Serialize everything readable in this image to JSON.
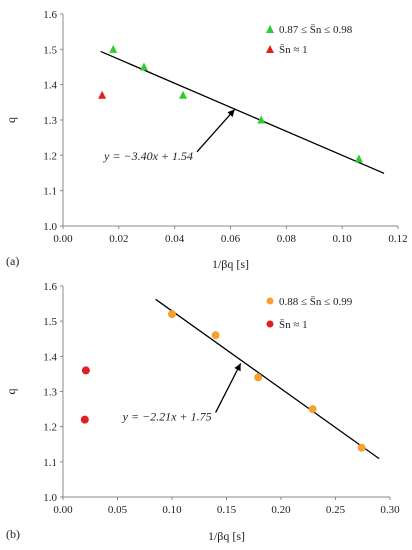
{
  "chart_data": [
    {
      "type": "scatter",
      "panel_label": "(a)",
      "xlabel": "1/βq [s]",
      "ylabel": "q",
      "xlim": [
        0,
        0.12
      ],
      "ylim": [
        1.0,
        1.6
      ],
      "xticks": [
        "0.00",
        "0.02",
        "0.04",
        "0.06",
        "0.08",
        "0.10",
        "0.12"
      ],
      "yticks": [
        "1.0",
        "1.1",
        "1.2",
        "1.3",
        "1.4",
        "1.5",
        "1.6"
      ],
      "marker": "triangle",
      "series": [
        {
          "name": "0.87 ≤ S̄n ≤ 0.98",
          "color": "#2ecc2e",
          "points": [
            [
              0.018,
              1.5
            ],
            [
              0.029,
              1.45
            ],
            [
              0.043,
              1.37
            ],
            [
              0.071,
              1.3
            ],
            [
              0.106,
              1.19
            ]
          ]
        },
        {
          "name": "S̄n ≈ 1",
          "color": "#e02020",
          "points": [
            [
              0.014,
              1.37
            ]
          ]
        }
      ],
      "fit_line": {
        "slope": -3.4,
        "intercept": 1.54,
        "x_range": [
          0.0135,
          0.115
        ],
        "label": "y = −3.40x + 1.54"
      },
      "annotation_arrow": {
        "from": [
          0.048,
          1.21
        ],
        "to": [
          0.0615,
          1.33
        ]
      }
    },
    {
      "type": "scatter",
      "panel_label": "(b)",
      "xlabel": "1/βq [s]",
      "ylabel": "q",
      "xlim": [
        0,
        0.3
      ],
      "ylim": [
        1.0,
        1.6
      ],
      "xticks": [
        "0.00",
        "0.05",
        "0.10",
        "0.15",
        "0.20",
        "0.25",
        "0.30"
      ],
      "yticks": [
        "1.0",
        "1.1",
        "1.2",
        "1.3",
        "1.4",
        "1.5",
        "1.6"
      ],
      "marker": "circle",
      "series": [
        {
          "name": "0.88 ≤ S̄n ≤ 0.99",
          "color": "#f5a030",
          "points": [
            [
              0.1,
              1.52
            ],
            [
              0.14,
              1.46
            ],
            [
              0.179,
              1.34
            ],
            [
              0.229,
              1.25
            ],
            [
              0.274,
              1.14
            ]
          ]
        },
        {
          "name": "S̄n ≈ 1",
          "color": "#e02020",
          "points": [
            [
              0.021,
              1.36
            ],
            [
              0.02,
              1.22
            ]
          ]
        }
      ],
      "fit_line": {
        "slope": -2.21,
        "intercept": 1.75,
        "x_range": [
          0.085,
          0.29
        ],
        "label": "y = −2.21x + 1.75"
      },
      "annotation_arrow": {
        "from": [
          0.14,
          1.24
        ],
        "to": [
          0.163,
          1.38
        ]
      }
    }
  ]
}
